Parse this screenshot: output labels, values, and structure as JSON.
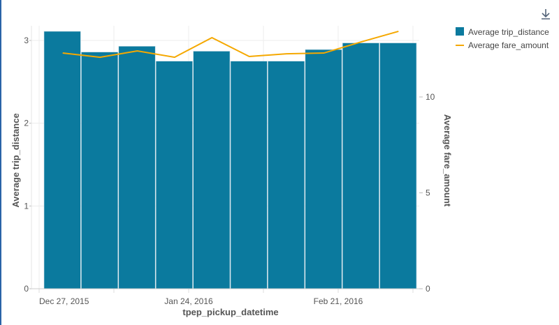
{
  "chart_data": {
    "type": "bar+line",
    "x_label": "tpep_pickup_datetime",
    "x_tick_labels": [
      "Dec 27, 2015",
      "Jan 24, 2016",
      "Feb 21, 2016"
    ],
    "categories": [
      "2015-12-27",
      "2016-01-03",
      "2016-01-10",
      "2016-01-17",
      "2016-01-24",
      "2016-01-31",
      "2016-02-07",
      "2016-02-14",
      "2016-02-21",
      "2016-02-28"
    ],
    "series": [
      {
        "name": "Average trip_distance",
        "type": "bar",
        "axis": "left",
        "color": "#0b7a9e",
        "values": [
          3.11,
          2.86,
          2.93,
          2.75,
          2.87,
          2.75,
          2.75,
          2.89,
          2.97,
          2.97
        ]
      },
      {
        "name": "Average fare_amount",
        "type": "line",
        "axis": "right",
        "color": "#f5a800",
        "values": [
          12.29,
          12.07,
          12.4,
          12.07,
          13.09,
          12.11,
          12.25,
          12.29,
          12.87,
          13.42
        ]
      }
    ],
    "y_left": {
      "label": "Average trip_distance",
      "ticks": [
        "0",
        "1",
        "2",
        "3"
      ],
      "range": [
        0,
        3.2
      ]
    },
    "y_right": {
      "label": "Average fare_amount",
      "ticks": [
        "0",
        "5",
        "10"
      ],
      "range": [
        0,
        13.9
      ]
    },
    "grid": true,
    "legend_position": "top-right"
  },
  "toolbar": {
    "download_icon": "download-icon"
  }
}
